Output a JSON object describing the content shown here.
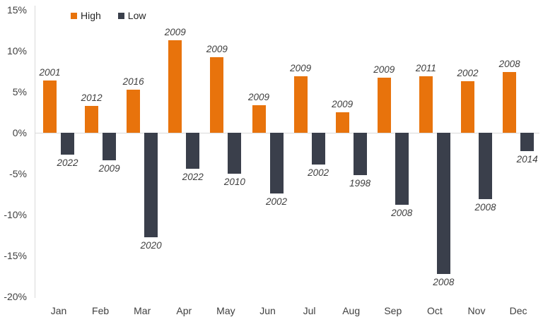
{
  "legend": {
    "high_label": "High",
    "low_label": "Low"
  },
  "colors": {
    "high": "#e8730c",
    "low": "#3a3f4b",
    "axis_line": "#d9d9d9",
    "text": "#3f3f3f"
  },
  "chart_data": {
    "type": "bar",
    "title": "",
    "xlabel": "",
    "ylabel": "",
    "ylim": [
      -20,
      15
    ],
    "ytick_step": 5,
    "ytick_labels": [
      "15%",
      "10%",
      "5%",
      "0%",
      "-5%",
      "-10%",
      "-15%",
      "-20%"
    ],
    "grid": "zero-line-only",
    "legend_position": "top-left",
    "categories": [
      "Jan",
      "Feb",
      "Mar",
      "Apr",
      "May",
      "Jun",
      "Jul",
      "Aug",
      "Sep",
      "Oct",
      "Nov",
      "Dec"
    ],
    "series": [
      {
        "name": "High",
        "color": "#e8730c",
        "values": [
          6.4,
          3.3,
          5.3,
          11.3,
          9.2,
          3.4,
          6.9,
          2.5,
          6.7,
          6.9,
          6.3,
          7.4
        ],
        "point_labels": [
          "2001",
          "2012",
          "2016",
          "2009",
          "2009",
          "2009",
          "2009",
          "2009",
          "2009",
          "2011",
          "2002",
          "2008"
        ]
      },
      {
        "name": "Low",
        "color": "#3a3f4b",
        "values": [
          -2.7,
          -3.4,
          -12.8,
          -4.4,
          -5.0,
          -7.4,
          -3.9,
          -5.2,
          -8.8,
          -17.2,
          -8.1,
          -2.2
        ],
        "point_labels": [
          "2022",
          "2009",
          "2020",
          "2022",
          "2010",
          "2002",
          "2002",
          "1998",
          "2008",
          "2008",
          "2008",
          "2014"
        ]
      }
    ]
  }
}
